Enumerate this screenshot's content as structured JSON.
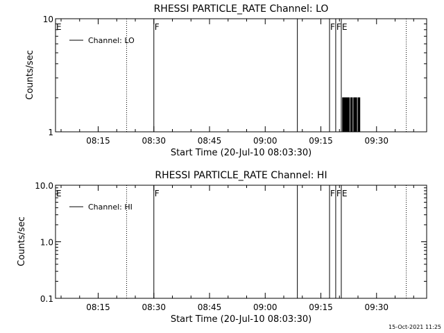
{
  "timestamp": "15-Oct-2021 11:25",
  "chart_data": [
    {
      "type": "line",
      "title": "RHESSI PARTICLE_RATE Channel: LO",
      "xlabel": "Start Time (20-Jul-10 08:03:30)",
      "ylabel": "Counts/sec",
      "yscale": "log",
      "ylim": [
        1,
        10
      ],
      "xlim": [
        "08:03:30",
        "09:43:30"
      ],
      "yticks": [
        {
          "value": 1,
          "label": "1"
        },
        {
          "value": 10,
          "label": "10"
        }
      ],
      "xticks": [
        {
          "value": "08:15",
          "label": "08:15"
        },
        {
          "value": "08:30",
          "label": "08:30"
        },
        {
          "value": "08:45",
          "label": "08:45"
        },
        {
          "value": "09:00",
          "label": "09:00"
        },
        {
          "value": "09:15",
          "label": "09:15"
        },
        {
          "value": "09:30",
          "label": "09:30"
        }
      ],
      "grid": false,
      "legend": {
        "position": "top-left",
        "entries": [
          "Channel: LO"
        ]
      },
      "series": [
        {
          "name": "Channel: LO",
          "x": [
            "09:20:40",
            "09:20:50",
            "09:21:00",
            "09:21:10",
            "09:21:20",
            "09:21:30",
            "09:21:40",
            "09:21:50",
            "09:22:00",
            "09:22:10",
            "09:22:20",
            "09:22:30",
            "09:22:40",
            "09:22:50",
            "09:23:00",
            "09:23:10",
            "09:23:20",
            "09:23:30",
            "09:23:40",
            "09:23:50",
            "09:24:00",
            "09:24:10",
            "09:24:20",
            "09:24:30",
            "09:24:40",
            "09:24:50",
            "09:25:00",
            "09:25:10",
            "09:25:20",
            "09:25:30"
          ],
          "y": [
            1,
            2,
            1,
            2,
            1,
            2,
            1,
            2,
            1,
            2,
            1,
            2,
            1,
            1,
            2,
            1,
            2,
            1,
            1,
            2,
            1,
            2,
            1,
            2,
            1,
            1,
            2,
            1,
            2,
            1
          ]
        }
      ],
      "markers": [
        {
          "time": "08:03:30",
          "label": "E",
          "style": "solid"
        },
        {
          "time": "08:22:40",
          "label": "",
          "style": "dotted"
        },
        {
          "time": "08:30:00",
          "label": "F",
          "style": "solid"
        },
        {
          "time": "09:08:40",
          "label": "",
          "style": "solid"
        },
        {
          "time": "09:17:20",
          "label": "F",
          "style": "solid"
        },
        {
          "time": "09:19:00",
          "label": "F",
          "style": "solid"
        },
        {
          "time": "09:20:30",
          "label": "E",
          "style": "solid"
        },
        {
          "time": "09:38:00",
          "label": "",
          "style": "dotted"
        }
      ]
    },
    {
      "type": "line",
      "title": "RHESSI PARTICLE_RATE Channel: HI",
      "xlabel": "Start Time (20-Jul-10 08:03:30)",
      "ylabel": "Counts/sec",
      "yscale": "log",
      "ylim": [
        0.1,
        10
      ],
      "xlim": [
        "08:03:30",
        "09:43:30"
      ],
      "yticks": [
        {
          "value": 0.1,
          "label": "0.1"
        },
        {
          "value": 1,
          "label": "1.0"
        },
        {
          "value": 10,
          "label": "10.0"
        }
      ],
      "xticks": [
        {
          "value": "08:15",
          "label": "08:15"
        },
        {
          "value": "08:30",
          "label": "08:30"
        },
        {
          "value": "08:45",
          "label": "08:45"
        },
        {
          "value": "09:00",
          "label": "09:00"
        },
        {
          "value": "09:15",
          "label": "09:15"
        },
        {
          "value": "09:30",
          "label": "09:30"
        }
      ],
      "grid": false,
      "legend": {
        "position": "top-left",
        "entries": [
          "Channel: HI"
        ]
      },
      "series": [
        {
          "name": "Channel: HI",
          "x": [],
          "y": []
        }
      ],
      "markers": [
        {
          "time": "08:03:30",
          "label": "E",
          "style": "solid"
        },
        {
          "time": "08:22:40",
          "label": "",
          "style": "dotted"
        },
        {
          "time": "08:30:00",
          "label": "F",
          "style": "solid"
        },
        {
          "time": "09:08:40",
          "label": "",
          "style": "solid"
        },
        {
          "time": "09:17:20",
          "label": "F",
          "style": "solid"
        },
        {
          "time": "09:19:00",
          "label": "F",
          "style": "solid"
        },
        {
          "time": "09:20:30",
          "label": "E",
          "style": "solid"
        },
        {
          "time": "09:38:00",
          "label": "",
          "style": "dotted"
        }
      ]
    }
  ]
}
